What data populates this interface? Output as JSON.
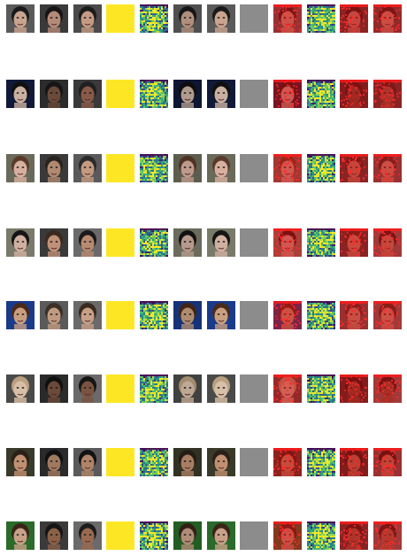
{
  "colors": {
    "background": "#ffffff",
    "uniform_yellow": "#fde725",
    "uniform_gray": "#8c8c8c",
    "viridis_low": "#440154",
    "viridis_mid": "#21918c",
    "viridis_high": "#fde725",
    "overlay_red": "#d01010"
  },
  "column_kinds": [
    "photo",
    "photo",
    "photo",
    "uniform-yellow",
    "heatmap",
    "photo",
    "photo",
    "uniform-gray",
    "overlay",
    "heatmap",
    "overlay",
    "overlay"
  ],
  "rows": [
    {
      "name": "row-1",
      "subjects": [
        {
          "bg": "#5a5a5a",
          "skin": "#c9a48e",
          "hair": "#1a1a1a"
        },
        {
          "bg": "#3a3a3a",
          "skin": "#b48a78",
          "hair": "#151515"
        },
        {
          "bg": "#4a4a4a",
          "skin": "#c49a84",
          "hair": "#1c1c1c"
        }
      ]
    },
    {
      "name": "row-2",
      "subjects": [
        {
          "bg": "#101a38",
          "skin": "#c9b0a0",
          "hair": "#101010"
        },
        {
          "bg": "#2c2c2c",
          "skin": "#6a4a3a",
          "hair": "#151515"
        },
        {
          "bg": "#3a3a3a",
          "skin": "#8a5a48",
          "hair": "#202020"
        }
      ]
    },
    {
      "name": "row-3",
      "subjects": [
        {
          "bg": "#6a6a5a",
          "skin": "#d8b0a0",
          "hair": "#5a3a2a"
        },
        {
          "bg": "#3a3a3a",
          "skin": "#b08a70",
          "hair": "#2a2420"
        },
        {
          "bg": "#5a5a5a",
          "skin": "#c49a80",
          "hair": "#2a2a2a"
        }
      ]
    },
    {
      "name": "row-4",
      "subjects": [
        {
          "bg": "#7a7a6a",
          "skin": "#d0b0a0",
          "hair": "#151515"
        },
        {
          "bg": "#3a3a3a",
          "skin": "#c09078",
          "hair": "#3a2a20"
        },
        {
          "bg": "#6a6a6a",
          "skin": "#b88a70",
          "hair": "#1a1a1a"
        }
      ]
    },
    {
      "name": "row-5",
      "subjects": [
        {
          "bg": "#1a3a8a",
          "skin": "#c8a080",
          "hair": "#4a2a1a"
        },
        {
          "bg": "#5a5a5a",
          "skin": "#c09a80",
          "hair": "#3a3028"
        },
        {
          "bg": "#6a6a6a",
          "skin": "#c8a088",
          "hair": "#3a2a20"
        }
      ]
    },
    {
      "name": "row-6",
      "subjects": [
        {
          "bg": "#4a4a48",
          "skin": "#d8c0a8",
          "hair": "#b8a080"
        },
        {
          "bg": "#2a2a2a",
          "skin": "#6a4a38",
          "hair": "#101010"
        },
        {
          "bg": "#6a6a6a",
          "skin": "#7a5440",
          "hair": "#151515"
        }
      ]
    },
    {
      "name": "row-7",
      "subjects": [
        {
          "bg": "#3a3a2a",
          "skin": "#c09070",
          "hair": "#2a2018"
        },
        {
          "bg": "#2a2a2a",
          "skin": "#a07a60",
          "hair": "#101010"
        },
        {
          "bg": "#5a5a5a",
          "skin": "#b08468",
          "hair": "#121212"
        }
      ]
    },
    {
      "name": "row-8",
      "subjects": [
        {
          "bg": "#2a6a2a",
          "skin": "#c8a088",
          "hair": "#3a2418"
        },
        {
          "bg": "#3a3a3a",
          "skin": "#8a6048",
          "hair": "#151515"
        },
        {
          "bg": "#6a6a6a",
          "skin": "#9a6a50",
          "hair": "#1c1c1c"
        }
      ]
    }
  ]
}
